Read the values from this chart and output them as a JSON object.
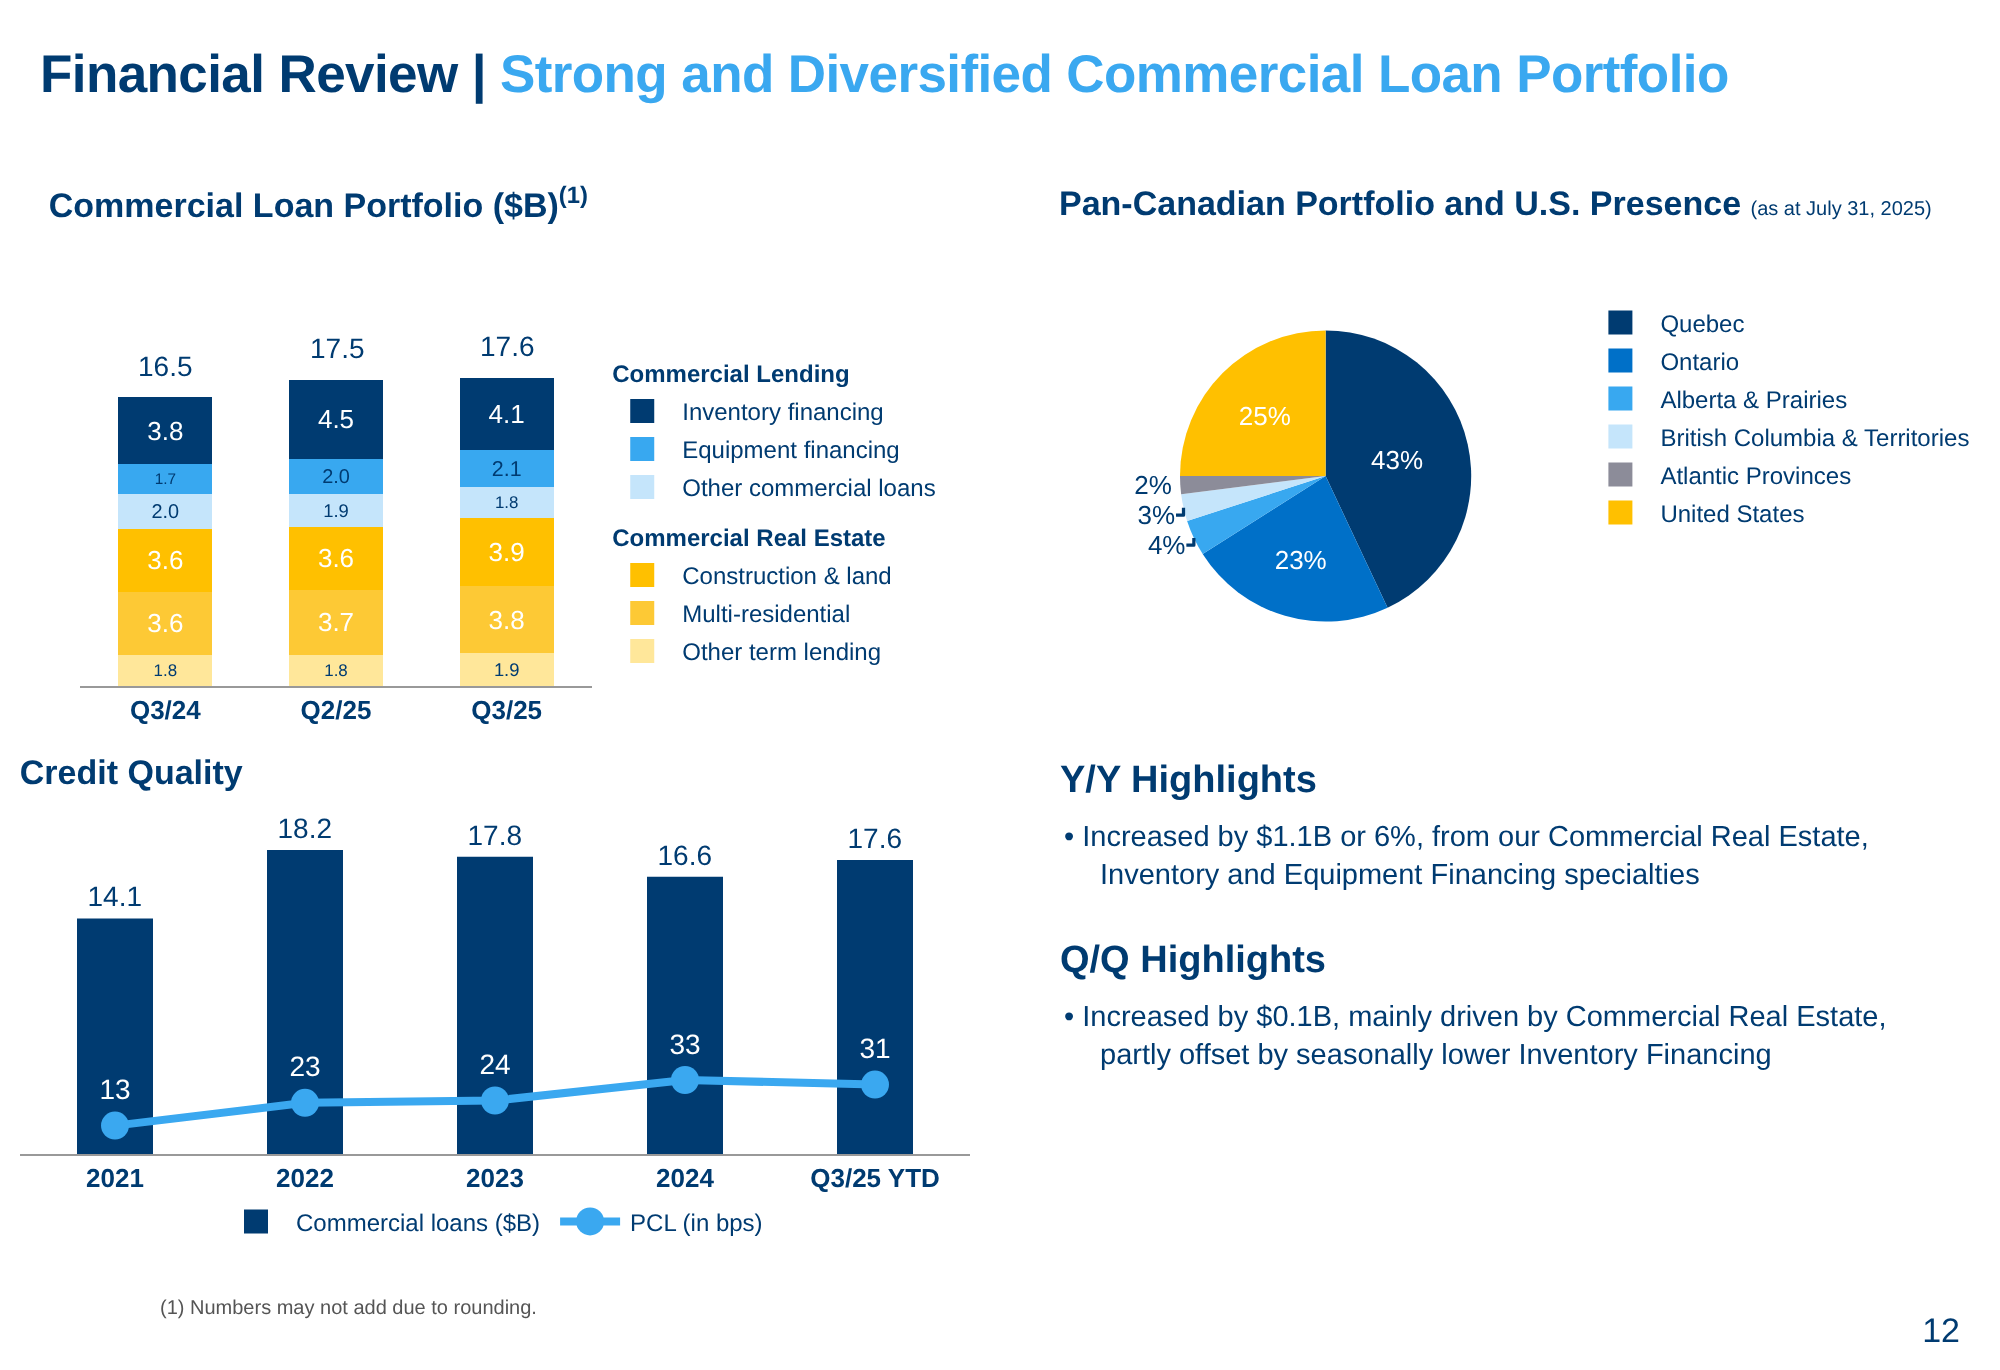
{
  "chart_data": [
    {
      "type": "other",
      "title": "Financial Review |",
      "subtitle": "Strong and Diversified Commercial Loan Portfolio"
    },
    {
      "type": "bar",
      "title": "Commercial Loan Portfolio ($B)$^{(1)}$",
      "categories": [
        "Q3/24",
        "Q2/25",
        "Q3/25"
      ],
      "stacked": true,
      "legend": "right",
      "tick_labels": "x",
      "annotations": [
        "Commercial Lending",
        "Commercial Real Estate"
      ],
      "series": [
        {
          "name": "Other term lending",
          "color": "#ffe79a",
          "values": [
            1.8,
            1.8,
            1.9
          ],
          "value_labels": [
            "1.8",
            "1.8",
            "1.9"
          ]
        },
        {
          "name": "Multi-residential",
          "color": "#fdc935",
          "values": [
            3.6,
            3.7,
            3.8
          ],
          "value_labels": [
            "3.6",
            "3.7",
            "3.8"
          ]
        },
        {
          "name": "Construction & land",
          "color": "#ffc000",
          "values": [
            3.6,
            3.6,
            3.9
          ],
          "value_labels": [
            "3.6",
            "3.6",
            "3.9"
          ]
        },
        {
          "name": "Other commercial loans",
          "color": "#c5e5fb",
          "values": [
            2.0,
            1.9,
            1.8
          ],
          "value_labels": [
            "2.0",
            "1.9",
            "1.8"
          ]
        },
        {
          "name": "Equipment financing",
          "color": "#38a8f0",
          "values": [
            1.7,
            2.0,
            2.1
          ],
          "value_labels": [
            "1.7",
            "2.0",
            "2.1"
          ]
        },
        {
          "name": "Inventory financing",
          "color": "#003b71",
          "values": [
            3.8,
            4.5,
            4.1
          ],
          "value_labels": [
            "3.8",
            "4.5",
            "4.1"
          ]
        }
      ],
      "totals": [
        "16.5",
        "17.5",
        "17.6"
      ]
    },
    {
      "type": "pie",
      "title": "Pan-Canadian Portfolio and U.S. Presence",
      "subtitle": "(as at July 31, 2025)",
      "legend": "right",
      "categories": [
        "Quebec",
        "Ontario",
        "Alberta & Prairies",
        "British Columbia & Territories",
        "Atlantic Provinces",
        "United States"
      ],
      "values": [
        43,
        23,
        4,
        3,
        2,
        25
      ],
      "value_labels": [
        "43%",
        "23%",
        "4%",
        "3%",
        "2%",
        "25%"
      ],
      "colors": [
        "#003b71",
        "#0070c8",
        "#38a8f0",
        "#c5e5fb",
        "#8c8c99",
        "#ffc000"
      ]
    },
    {
      "type": "bar",
      "title": "Credit Quality",
      "categories": [
        "2021",
        "2022",
        "2023",
        "2024",
        "Q3/25 YTD"
      ],
      "legend": "bottom",
      "tick_labels": "x",
      "data_labels": true,
      "marker": "circle",
      "series": [
        {
          "name": "Commercial loans ($B)",
          "type": "bar",
          "color": "#003b71",
          "values": [
            14.1,
            18.2,
            17.8,
            16.6,
            17.6
          ]
        },
        {
          "name": "PCL (in bps)",
          "type": "line",
          "axis": "y2",
          "color": "#3aa8f0",
          "values": [
            13,
            23,
            24,
            33,
            31
          ]
        }
      ]
    },
    {
      "type": "other",
      "title": "Y/Y Highlights",
      "annotations": [
        "• Increased by $1.1B or 6%, from our Commercial Real Estate, Inventory and Equipment Financing specialties"
      ]
    },
    {
      "type": "other",
      "title": "Q/Q Highlights",
      "annotations": [
        "• Increased by $0.1B, mainly driven by Commercial Real Estate, partly offset by seasonally lower Inventory Financing"
      ]
    },
    {
      "type": "other",
      "annotations": [
        "(1) Numbers may not add due to rounding.",
        "12"
      ]
    }
  ]
}
